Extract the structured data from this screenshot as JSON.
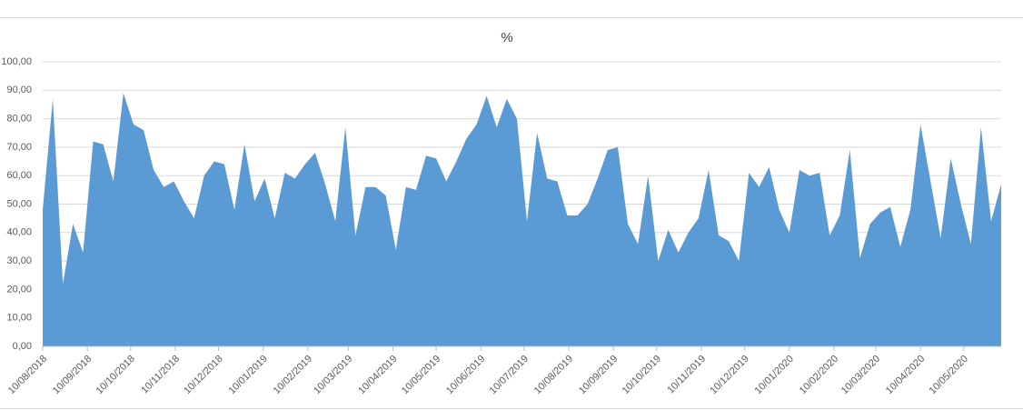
{
  "chart_data": {
    "type": "area",
    "title": "%",
    "x": [
      "10/08/2018",
      "17/08/2018",
      "24/08/2018",
      "31/08/2018",
      "07/09/2018",
      "14/09/2018",
      "21/09/2018",
      "28/09/2018",
      "05/10/2018",
      "12/10/2018",
      "19/10/2018",
      "26/10/2018",
      "02/11/2018",
      "09/11/2018",
      "16/11/2018",
      "23/11/2018",
      "30/11/2018",
      "07/12/2018",
      "14/12/2018",
      "21/12/2018",
      "28/12/2018",
      "04/01/2019",
      "11/01/2019",
      "18/01/2019",
      "25/01/2019",
      "01/02/2019",
      "08/02/2019",
      "15/02/2019",
      "22/02/2019",
      "01/03/2019",
      "08/03/2019",
      "15/03/2019",
      "22/03/2019",
      "29/03/2019",
      "05/04/2019",
      "12/04/2019",
      "19/04/2019",
      "26/04/2019",
      "03/05/2019",
      "10/05/2019",
      "17/05/2019",
      "24/05/2019",
      "31/05/2019",
      "07/06/2019",
      "14/06/2019",
      "21/06/2019",
      "28/06/2019",
      "05/07/2019",
      "12/07/2019",
      "19/07/2019",
      "26/07/2019",
      "02/08/2019",
      "09/08/2019",
      "16/08/2019",
      "23/08/2019",
      "30/08/2019",
      "06/09/2019",
      "13/09/2019",
      "20/09/2019",
      "27/09/2019",
      "04/10/2019",
      "11/10/2019",
      "18/10/2019",
      "25/10/2019",
      "01/11/2019",
      "08/11/2019",
      "15/11/2019",
      "22/11/2019",
      "29/11/2019",
      "06/12/2019",
      "13/12/2019",
      "20/12/2019",
      "27/12/2019",
      "03/01/2020",
      "10/01/2020",
      "17/01/2020",
      "24/01/2020",
      "31/01/2020",
      "07/02/2020",
      "14/02/2020",
      "21/02/2020",
      "28/02/2020",
      "06/03/2020",
      "13/03/2020",
      "20/03/2020",
      "27/03/2020",
      "03/04/2020",
      "10/04/2020",
      "17/04/2020",
      "24/04/2020",
      "01/05/2020",
      "08/05/2020",
      "15/05/2020",
      "22/05/2020",
      "29/05/2020",
      "05/06/2020"
    ],
    "series": [
      {
        "color": "#5b9bd5",
        "values": [
          48,
          87,
          22,
          43,
          33,
          72,
          71,
          58,
          89,
          78,
          76,
          62,
          56,
          58,
          51,
          45,
          60,
          65,
          64,
          48,
          71,
          51,
          59,
          45,
          61,
          59,
          64,
          68,
          57,
          44,
          77,
          39,
          56,
          56,
          53,
          34,
          56,
          55,
          67,
          66,
          58,
          65,
          73,
          78,
          88,
          77,
          87,
          80,
          44,
          75,
          59,
          58,
          46,
          46,
          50,
          59,
          69,
          70,
          43,
          36,
          60,
          30,
          41,
          33,
          40,
          45,
          62,
          39,
          37,
          30,
          61,
          56,
          63,
          48,
          40,
          62,
          60,
          61,
          39,
          46,
          69,
          31,
          43,
          47,
          49,
          35,
          48,
          78,
          58,
          38,
          66,
          50,
          36,
          77,
          44,
          57
        ]
      }
    ],
    "xlim": [
      "10/08/2018",
      "05/06/2020"
    ],
    "xticks": [
      "10/08/2018",
      "10/09/2018",
      "10/10/2018",
      "10/11/2018",
      "10/12/2018",
      "10/01/2019",
      "10/02/2019",
      "10/03/2019",
      "10/04/2019",
      "10/05/2019",
      "10/06/2019",
      "10/07/2019",
      "10/08/2019",
      "10/09/2019",
      "10/10/2019",
      "10/11/2019",
      "10/12/2019",
      "10/01/2020",
      "10/02/2020",
      "10/03/2020",
      "10/04/2020",
      "10/05/2020"
    ],
    "ylim": [
      0,
      100
    ],
    "yticks": [
      {
        "value": 0,
        "label": "0,00"
      },
      {
        "value": 10,
        "label": "10,00"
      },
      {
        "value": 20,
        "label": "20,00"
      },
      {
        "value": 30,
        "label": "30,00"
      },
      {
        "value": 40,
        "label": "40,00"
      },
      {
        "value": 50,
        "label": "50,00"
      },
      {
        "value": 60,
        "label": "60,00"
      },
      {
        "value": 70,
        "label": "70,00"
      },
      {
        "value": 80,
        "label": "80,00"
      },
      {
        "value": 90,
        "label": "90,00"
      },
      {
        "value": 100,
        "label": "100,00"
      }
    ],
    "grid": true
  }
}
